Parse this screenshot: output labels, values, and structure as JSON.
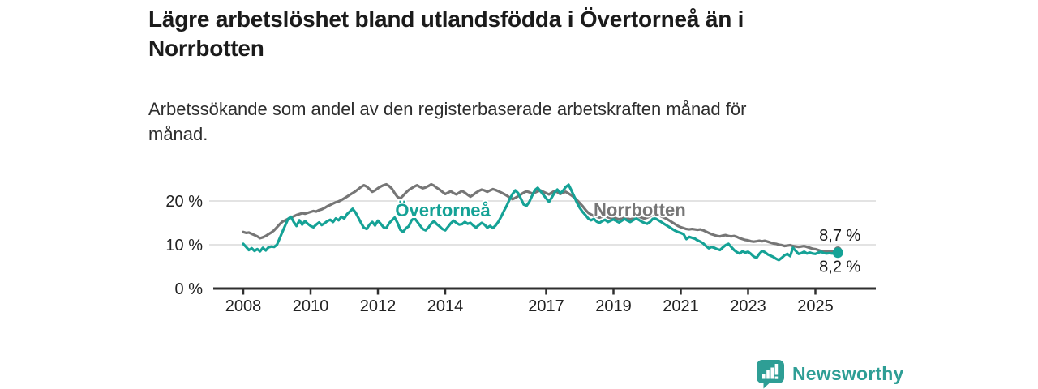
{
  "header": {
    "title": "Lägre arbetslöshet bland utlandsfödda i Övertorneå än i\nNorrbotten",
    "subtitle": "Arbetssökande som andel av den registerbaserade arbetskraften månad för\nmånad."
  },
  "footer": {
    "brand": "Newsworthy",
    "brand_color": "#2E9E95",
    "logo_icon": "bar-chart-speech-bubble"
  },
  "chart_data": {
    "type": "line",
    "title": "Lägre arbetslöshet bland utlandsfödda i Övertorneå än i Norrbotten",
    "subtitle": "Arbetssökande som andel av den registerbaserade arbetskraften månad för månad.",
    "xlabel": "",
    "ylabel": "",
    "unit": "%",
    "xlim": [
      2007.85,
      2026.1
    ],
    "ylim": [
      0,
      25
    ],
    "grid": "horizontal",
    "legend_position": "inline-labels",
    "x_start": 2008.0,
    "x_step": 0.0833333,
    "x_ticks": [
      2008,
      2010,
      2012,
      2014,
      2017,
      2019,
      2021,
      2023,
      2025
    ],
    "x_tick_labels": [
      "2008",
      "2010",
      "2012",
      "2014",
      "2017",
      "2019",
      "2021",
      "2023",
      "2025"
    ],
    "y_ticks": [
      {
        "value": 0,
        "label": "0 %"
      },
      {
        "value": 10,
        "label": "10 %"
      },
      {
        "value": 20,
        "label": "20 %"
      }
    ],
    "end_dot": true,
    "series": [
      {
        "name": "Norrbotten",
        "color": "#767676",
        "end_label": "8,7 %",
        "end_label_side": "above",
        "label_pos": {
          "x": 2019.78,
          "y": 18.1
        },
        "values": [
          12.9,
          12.7,
          12.8,
          12.5,
          12.2,
          11.9,
          11.5,
          11.7,
          12.0,
          12.4,
          12.8,
          13.3,
          14.0,
          14.7,
          15.3,
          15.6,
          15.9,
          16.2,
          16.5,
          16.8,
          17.0,
          17.2,
          17.1,
          17.3,
          17.5,
          17.7,
          17.6,
          17.9,
          18.1,
          18.4,
          18.8,
          19.1,
          19.4,
          19.7,
          19.9,
          20.2,
          20.6,
          21.0,
          21.4,
          21.8,
          22.2,
          22.7,
          23.2,
          23.6,
          23.3,
          22.7,
          22.1,
          22.4,
          22.9,
          23.3,
          23.6,
          23.8,
          23.4,
          22.8,
          21.8,
          20.9,
          20.6,
          21.2,
          21.9,
          22.5,
          22.9,
          23.3,
          23.6,
          23.2,
          22.9,
          23.1,
          23.4,
          23.8,
          23.5,
          23.0,
          22.6,
          22.1,
          21.6,
          21.9,
          22.2,
          21.8,
          21.5,
          21.9,
          22.3,
          21.9,
          21.4,
          21.0,
          21.4,
          21.9,
          22.3,
          22.6,
          22.4,
          22.1,
          22.4,
          22.7,
          22.5,
          22.2,
          21.9,
          21.6,
          21.2,
          20.8,
          20.4,
          20.7,
          21.1,
          21.5,
          21.9,
          22.2,
          22.0,
          21.7,
          21.9,
          22.2,
          22.4,
          22.1,
          21.8,
          21.5,
          21.9,
          22.3,
          22.0,
          21.6,
          21.9,
          22.1,
          21.7,
          21.3,
          20.8,
          20.2,
          19.5,
          18.8,
          18.0,
          17.3,
          16.9,
          16.6,
          16.4,
          16.2,
          16.4,
          16.6,
          16.3,
          16.1,
          16.3,
          16.0,
          15.8,
          16.0,
          16.2,
          16.0,
          15.8,
          16.0,
          16.2,
          16.4,
          16.2,
          16.0,
          16.2,
          16.5,
          16.9,
          17.0,
          16.8,
          16.5,
          16.2,
          15.9,
          15.5,
          15.1,
          14.7,
          14.3,
          14.0,
          13.8,
          13.6,
          13.5,
          13.6,
          13.5,
          13.4,
          13.5,
          13.3,
          13.0,
          12.7,
          12.4,
          12.2,
          12.0,
          11.9,
          12.1,
          12.2,
          12.0,
          11.9,
          12.0,
          11.8,
          11.5,
          11.3,
          11.1,
          11.0,
          10.8,
          10.7,
          10.8,
          10.9,
          10.8,
          10.9,
          10.7,
          10.5,
          10.3,
          10.2,
          10.0,
          9.9,
          9.7,
          9.8,
          9.9,
          9.7,
          9.6,
          9.5,
          9.6,
          9.7,
          9.5,
          9.3,
          9.1,
          9.0,
          8.8,
          8.6,
          8.5,
          8.4,
          8.5,
          8.4,
          8.6,
          8.7
        ]
      },
      {
        "name": "Övertorneå",
        "color": "#15A296",
        "end_label": "8,2 %",
        "end_label_side": "below",
        "label_pos": {
          "x": 2013.93,
          "y": 18.0
        },
        "values": [
          10.2,
          9.5,
          8.8,
          9.2,
          8.6,
          9.0,
          8.5,
          9.3,
          8.7,
          9.4,
          9.6,
          9.5,
          10.0,
          11.5,
          13.0,
          14.5,
          15.9,
          16.4,
          15.2,
          14.3,
          15.6,
          14.6,
          15.4,
          14.8,
          14.3,
          14.0,
          14.6,
          15.1,
          14.5,
          14.9,
          15.4,
          15.7,
          15.2,
          16.0,
          15.6,
          16.4,
          16.0,
          17.0,
          17.6,
          18.2,
          17.4,
          16.2,
          15.0,
          13.9,
          13.6,
          14.6,
          15.2,
          14.4,
          15.5,
          14.8,
          14.0,
          13.8,
          14.9,
          15.6,
          16.2,
          15.0,
          13.4,
          12.9,
          13.8,
          14.2,
          15.6,
          16.1,
          15.3,
          14.4,
          13.6,
          13.3,
          13.9,
          14.8,
          15.4,
          14.7,
          14.2,
          13.6,
          13.3,
          14.1,
          14.9,
          15.5,
          15.0,
          14.6,
          14.7,
          15.2,
          14.8,
          15.0,
          14.4,
          13.9,
          14.5,
          15.0,
          14.6,
          13.9,
          14.3,
          13.8,
          14.4,
          15.3,
          16.5,
          17.8,
          19.0,
          20.4,
          21.6,
          22.4,
          21.8,
          20.5,
          19.2,
          18.9,
          19.8,
          21.2,
          22.5,
          23.0,
          22.2,
          21.4,
          20.6,
          19.8,
          20.8,
          21.9,
          22.6,
          21.8,
          22.3,
          23.2,
          23.7,
          22.4,
          21.0,
          19.6,
          18.4,
          17.5,
          16.8,
          16.0,
          15.6,
          15.9,
          15.3,
          15.0,
          15.4,
          15.7,
          15.2,
          15.5,
          15.8,
          15.4,
          15.1,
          15.5,
          15.9,
          15.5,
          15.2,
          15.6,
          16.0,
          15.7,
          15.3,
          15.0,
          14.8,
          15.2,
          15.9,
          16.0,
          15.6,
          15.2,
          14.8,
          14.4,
          14.0,
          13.6,
          13.2,
          12.9,
          12.7,
          12.4,
          11.3,
          11.8,
          11.6,
          11.4,
          11.0,
          10.7,
          10.3,
          9.7,
          9.2,
          9.5,
          9.3,
          9.0,
          8.8,
          9.4,
          9.9,
          10.2,
          9.5,
          8.8,
          8.3,
          8.0,
          8.5,
          8.2,
          8.4,
          7.9,
          7.3,
          7.0,
          7.9,
          8.6,
          8.3,
          7.8,
          7.5,
          7.2,
          6.8,
          6.5,
          7.0,
          7.6,
          7.9,
          7.4,
          9.3,
          8.6,
          7.9,
          8.1,
          8.4,
          8.0,
          8.2,
          8.0,
          7.9,
          8.2,
          8.4,
          8.1,
          8.0,
          8.1,
          8.0,
          8.1,
          8.2
        ]
      }
    ]
  }
}
